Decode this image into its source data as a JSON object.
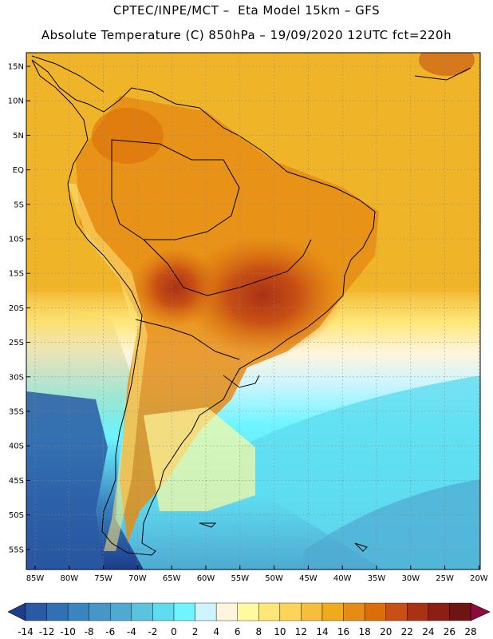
{
  "header": {
    "title": "CPTEC/INPE/MCT –  Eta Model 15km – GFS",
    "subtitle": "Absolute Temperature (C) 850hPa – 19/09/2020 12UTC fct=220h"
  },
  "axes": {
    "lat_labels": [
      "15N",
      "10N",
      "5N",
      "EQ",
      "5S",
      "10S",
      "15S",
      "20S",
      "25S",
      "30S",
      "35S",
      "40S",
      "45S",
      "50S",
      "55S"
    ],
    "lon_labels": [
      "85W",
      "80W",
      "75W",
      "70W",
      "65W",
      "60W",
      "55W",
      "50W",
      "45W",
      "40W",
      "35W",
      "30W",
      "25W",
      "20W"
    ]
  },
  "colorbar": {
    "labels": [
      "-14",
      "-12",
      "-10",
      "-8",
      "-6",
      "-4",
      "-2",
      "0",
      "2",
      "4",
      "6",
      "8",
      "10",
      "12",
      "14",
      "16",
      "18",
      "20",
      "22",
      "24",
      "26",
      "28"
    ],
    "colors": [
      "#1e3c8c",
      "#2a5aa5",
      "#3070b4",
      "#3a84c0",
      "#4696c8",
      "#4eaad2",
      "#5ac3e0",
      "#5fdcf0",
      "#6ef5ff",
      "#cdf5ff",
      "#fff5dc",
      "#fffaa0",
      "#ffe678",
      "#ffd25a",
      "#f5be3c",
      "#f0aa1e",
      "#e68c14",
      "#dc6e0a",
      "#c85014",
      "#aa3214",
      "#8c1e14",
      "#6e1414",
      "#8c0a3c",
      "#1e3c8c"
    ]
  }
}
